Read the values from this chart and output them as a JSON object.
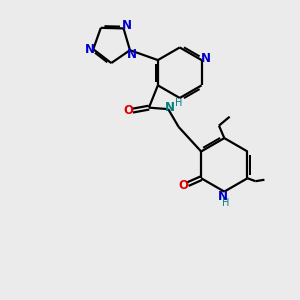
{
  "background_color": "#ebebeb",
  "bond_color": "#000000",
  "N_color": "#0000cc",
  "O_color": "#dd0000",
  "NH_color": "#008080",
  "figsize": [
    3.0,
    3.0
  ],
  "dpi": 100,
  "xlim": [
    0,
    10
  ],
  "ylim": [
    0,
    10
  ]
}
